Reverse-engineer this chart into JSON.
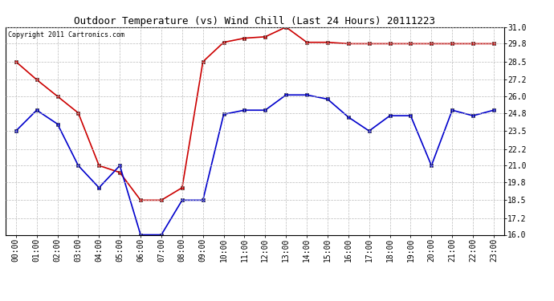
{
  "title": "Outdoor Temperature (vs) Wind Chill (Last 24 Hours) 20111223",
  "copyright": "Copyright 2011 Cartronics.com",
  "hours": [
    "00:00",
    "01:00",
    "02:00",
    "03:00",
    "04:00",
    "05:00",
    "06:00",
    "07:00",
    "08:00",
    "09:00",
    "10:00",
    "11:00",
    "12:00",
    "13:00",
    "14:00",
    "15:00",
    "16:00",
    "17:00",
    "18:00",
    "19:00",
    "20:00",
    "21:00",
    "22:00",
    "23:00"
  ],
  "temp": [
    28.5,
    27.2,
    26.0,
    24.8,
    21.0,
    20.5,
    18.5,
    18.5,
    19.4,
    28.5,
    29.9,
    30.2,
    30.3,
    31.0,
    29.9,
    29.9,
    29.8,
    29.8,
    29.8,
    29.8,
    29.8,
    29.8,
    29.8,
    29.8
  ],
  "windchill": [
    23.5,
    25.0,
    24.0,
    21.0,
    19.4,
    21.0,
    16.0,
    16.0,
    18.5,
    18.5,
    24.7,
    25.0,
    25.0,
    26.1,
    26.1,
    25.8,
    24.5,
    23.5,
    24.6,
    24.6,
    21.0,
    25.0,
    24.6,
    25.0
  ],
  "temp_color": "#cc0000",
  "windchill_color": "#0000cc",
  "background_color": "#ffffff",
  "grid_color": "#bbbbbb",
  "ylim": [
    16.0,
    31.0
  ],
  "yticks": [
    16.0,
    17.2,
    18.5,
    19.8,
    21.0,
    22.2,
    23.5,
    24.8,
    26.0,
    27.2,
    28.5,
    29.8,
    31.0
  ],
  "title_fontsize": 9,
  "copyright_fontsize": 6,
  "tick_fontsize": 7,
  "markersize": 3,
  "linewidth": 1.2
}
